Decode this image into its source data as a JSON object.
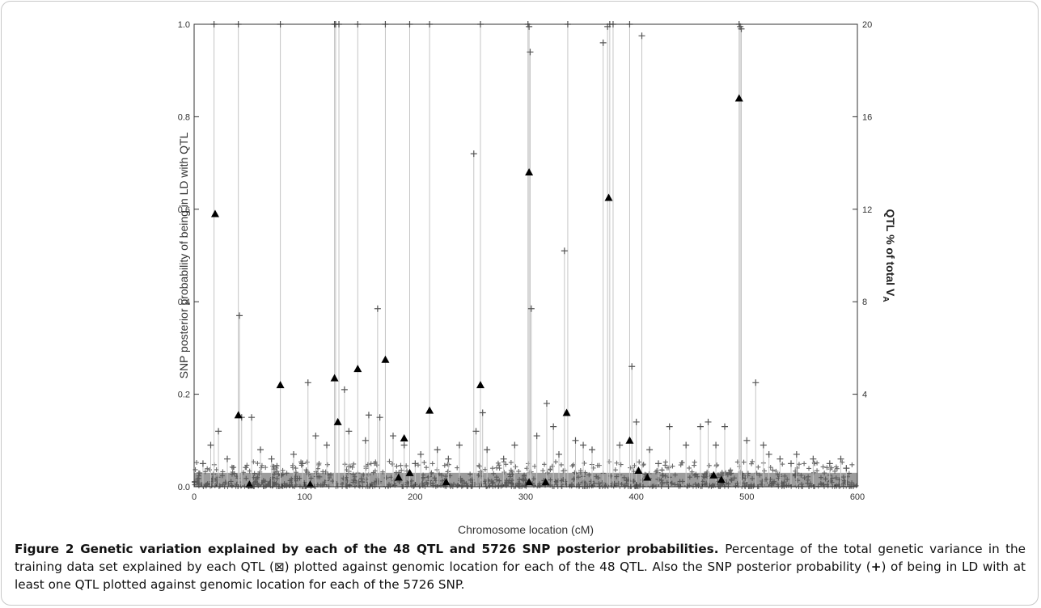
{
  "chart_data": {
    "type": "scatter",
    "xlabel": "Chromosome location (cM)",
    "ylabel": "SNP posterior probability of being in LD with QTL",
    "y2label_main": "QTL % of total V",
    "y2label_sub": "A",
    "xlim": [
      0,
      600
    ],
    "ylim": [
      0,
      1.0
    ],
    "y2lim": [
      0,
      20
    ],
    "xticks": [
      0,
      100,
      200,
      300,
      400,
      500,
      600
    ],
    "yticks": [
      0.0,
      0.2,
      0.4,
      0.6,
      0.8,
      1.0
    ],
    "y2ticks": [
      4,
      8,
      12,
      16,
      20
    ],
    "grid": false,
    "series": [
      {
        "marker": "+",
        "axis": "left",
        "color": "#555555",
        "points": [
          [
            18,
            1.0
          ],
          [
            22,
            0.12
          ],
          [
            40,
            1.0
          ],
          [
            41,
            0.37
          ],
          [
            43,
            0.15
          ],
          [
            52,
            0.15
          ],
          [
            78,
            1.0
          ],
          [
            103,
            0.225
          ],
          [
            127,
            1.0
          ],
          [
            128,
            1.0
          ],
          [
            131,
            1.0
          ],
          [
            136,
            0.21
          ],
          [
            148,
            1.0
          ],
          [
            158,
            0.155
          ],
          [
            166,
            0.385
          ],
          [
            168,
            0.15
          ],
          [
            173,
            1.0
          ],
          [
            195,
            1.0
          ],
          [
            213,
            1.0
          ],
          [
            253,
            0.72
          ],
          [
            259,
            1.0
          ],
          [
            261,
            0.16
          ],
          [
            302,
            1.0
          ],
          [
            303,
            0.995
          ],
          [
            304,
            0.94
          ],
          [
            305,
            0.385
          ],
          [
            319,
            0.18
          ],
          [
            335,
            0.51
          ],
          [
            338,
            1.0
          ],
          [
            370,
            0.96
          ],
          [
            374,
            0.995
          ],
          [
            376,
            1.0
          ],
          [
            379,
            1.0
          ],
          [
            394,
            1.0
          ],
          [
            396,
            0.26
          ],
          [
            405,
            0.975
          ],
          [
            493,
            1.0
          ],
          [
            494,
            0.995
          ],
          [
            495,
            0.99
          ],
          [
            508,
            0.225
          ],
          [
            15,
            0.09
          ],
          [
            60,
            0.08
          ],
          [
            70,
            0.06
          ],
          [
            90,
            0.07
          ],
          [
            110,
            0.11
          ],
          [
            120,
            0.09
          ],
          [
            140,
            0.12
          ],
          [
            155,
            0.1
          ],
          [
            180,
            0.11
          ],
          [
            190,
            0.09
          ],
          [
            205,
            0.07
          ],
          [
            220,
            0.08
          ],
          [
            240,
            0.09
          ],
          [
            255,
            0.12
          ],
          [
            265,
            0.08
          ],
          [
            280,
            0.06
          ],
          [
            290,
            0.09
          ],
          [
            310,
            0.11
          ],
          [
            325,
            0.13
          ],
          [
            345,
            0.1
          ],
          [
            352,
            0.09
          ],
          [
            360,
            0.08
          ],
          [
            385,
            0.09
          ],
          [
            400,
            0.14
          ],
          [
            412,
            0.08
          ],
          [
            430,
            0.13
          ],
          [
            445,
            0.09
          ],
          [
            458,
            0.13
          ],
          [
            465,
            0.14
          ],
          [
            472,
            0.09
          ],
          [
            480,
            0.13
          ],
          [
            500,
            0.1
          ],
          [
            515,
            0.09
          ],
          [
            520,
            0.07
          ],
          [
            530,
            0.06
          ],
          [
            545,
            0.07
          ],
          [
            560,
            0.06
          ],
          [
            575,
            0.05
          ],
          [
            590,
            0.04
          ],
          [
            8,
            0.05
          ],
          [
            30,
            0.06
          ],
          [
            98,
            0.05
          ],
          [
            200,
            0.05
          ],
          [
            230,
            0.06
          ],
          [
            330,
            0.07
          ],
          [
            420,
            0.05
          ],
          [
            540,
            0.05
          ],
          [
            585,
            0.06
          ]
        ]
      },
      {
        "marker": "triangle",
        "axis": "right",
        "color": "#000000",
        "points": [
          [
            19,
            11.8
          ],
          [
            40,
            3.1
          ],
          [
            78,
            4.4
          ],
          [
            127,
            4.7
          ],
          [
            130,
            2.8
          ],
          [
            148,
            5.1
          ],
          [
            173,
            5.5
          ],
          [
            190,
            2.1
          ],
          [
            213,
            3.3
          ],
          [
            259,
            4.4
          ],
          [
            303,
            13.6
          ],
          [
            337,
            3.2
          ],
          [
            375,
            12.5
          ],
          [
            394,
            2.0
          ],
          [
            493,
            16.8
          ],
          [
            50,
            0.1
          ],
          [
            105,
            0.1
          ],
          [
            185,
            0.4
          ],
          [
            195,
            0.6
          ],
          [
            228,
            0.2
          ],
          [
            303,
            0.2
          ],
          [
            318,
            0.2
          ],
          [
            402,
            0.7
          ],
          [
            410,
            0.4
          ],
          [
            470,
            0.5
          ],
          [
            477,
            0.3
          ]
        ]
      }
    ]
  },
  "caption": {
    "title": "Figure 2 Genetic variation explained by each of the 48 QTL and 5726 SNP posterior probabilities",
    "sep": ". ",
    "body_1": "Percentage of the total genetic variance in the training data set explained by each QTL (",
    "triangle_symbol": "⊠",
    "body_2": ") plotted against genomic location for each of the 48 QTL. Also the SNP posterior probability (",
    "plus_symbol": "+",
    "body_3": ") of being in LD with at least one QTL plotted against genomic location for each of the 5726 SNP."
  }
}
